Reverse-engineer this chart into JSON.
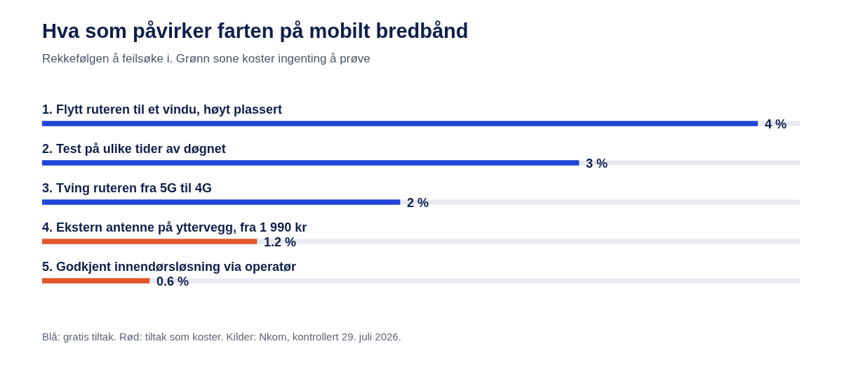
{
  "chart_data": {
    "type": "bar",
    "orientation": "horizontal",
    "title": "Hva som påvirker farten på mobilt bredbånd",
    "subtitle": "Rekkefølgen å feilsøke i. Grønn sone koster ingenting å prøve",
    "categories": [
      "1. Flytt ruteren til et vindu, høyt plassert",
      "2. Test på ulike tider av døgnet",
      "3. Tving ruteren fra 5G til 4G",
      "4. Ekstern antenne på yttervegg, fra 1 990 kr",
      "5. Godkjent innendørsløsning via operatør"
    ],
    "values": [
      4,
      3,
      2,
      1.2,
      0.6
    ],
    "colors": [
      "#1f44d8",
      "#1f44d8",
      "#1f44d8",
      "#e0572b",
      "#e0572b"
    ],
    "value_labels": [
      "4 %",
      "3 %",
      "2 %",
      "1.2 %",
      "0.6 %"
    ],
    "xlim": [
      0,
      4
    ],
    "annotations": [
      "Blå: gratis tiltak. Rød: tiltak som koster. Kilder: Nkom, kontrollert 29. juli 2026."
    ]
  }
}
